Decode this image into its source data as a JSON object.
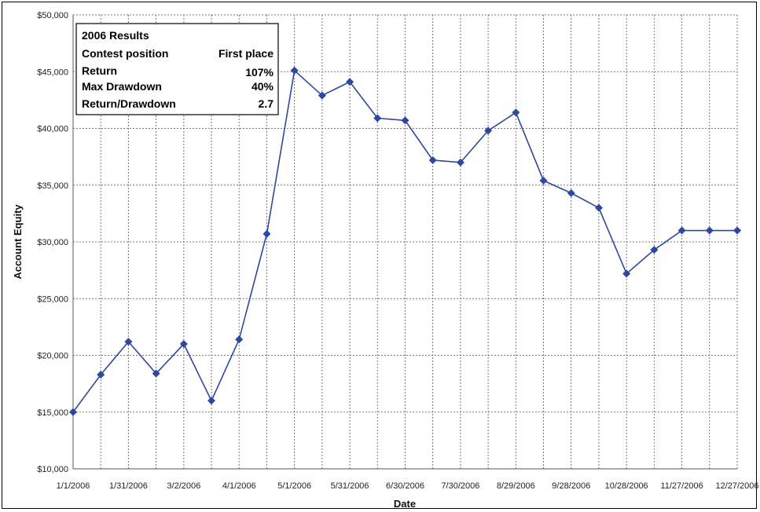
{
  "chart_data": {
    "type": "line",
    "title": "",
    "xlabel": "Date",
    "ylabel": "Account Equity",
    "ylim": [
      10000,
      50000
    ],
    "y_ticks": [
      "$10,000",
      "$15,000",
      "$20,000",
      "$25,000",
      "$30,000",
      "$35,000",
      "$40,000",
      "$45,000",
      "$50,000"
    ],
    "x_ticks": [
      "1/1/2006",
      "1/31/2006",
      "3/2/2006",
      "4/1/2006",
      "5/1/2006",
      "5/31/2006",
      "6/30/2006",
      "7/30/2006",
      "8/29/2006",
      "9/28/2006",
      "10/28/2006",
      "11/27/2006",
      "12/27/2006"
    ],
    "grid": true,
    "series": [
      {
        "color": "#2e47a0",
        "x": [
          "2006-01-01",
          "2006-01-16",
          "2006-01-31",
          "2006-02-15",
          "2006-03-02",
          "2006-03-17",
          "2006-04-01",
          "2006-04-16",
          "2006-05-01",
          "2006-05-16",
          "2006-05-31",
          "2006-06-15",
          "2006-06-30",
          "2006-07-15",
          "2006-07-30",
          "2006-08-14",
          "2006-08-29",
          "2006-09-13",
          "2006-09-28",
          "2006-10-13",
          "2006-10-28",
          "2006-11-12",
          "2006-11-27",
          "2006-12-12",
          "2006-12-27"
        ],
        "values": [
          15000,
          18300,
          21200,
          18400,
          21000,
          16000,
          21400,
          30700,
          45100,
          42900,
          44100,
          40900,
          40700,
          37200,
          37000,
          39800,
          41400,
          35400,
          34300,
          33000,
          27200,
          29300,
          31000,
          31000,
          31000
        ]
      }
    ],
    "legend": "none"
  },
  "results_box": {
    "heading": "2006 Results",
    "rows": [
      {
        "label": "Contest position",
        "value": "First place"
      },
      {
        "label": "Return",
        "value": "107%"
      },
      {
        "label": "Max Drawdown",
        "value": "40%"
      },
      {
        "label": "Return/Drawdown",
        "value": "2.7"
      }
    ]
  }
}
